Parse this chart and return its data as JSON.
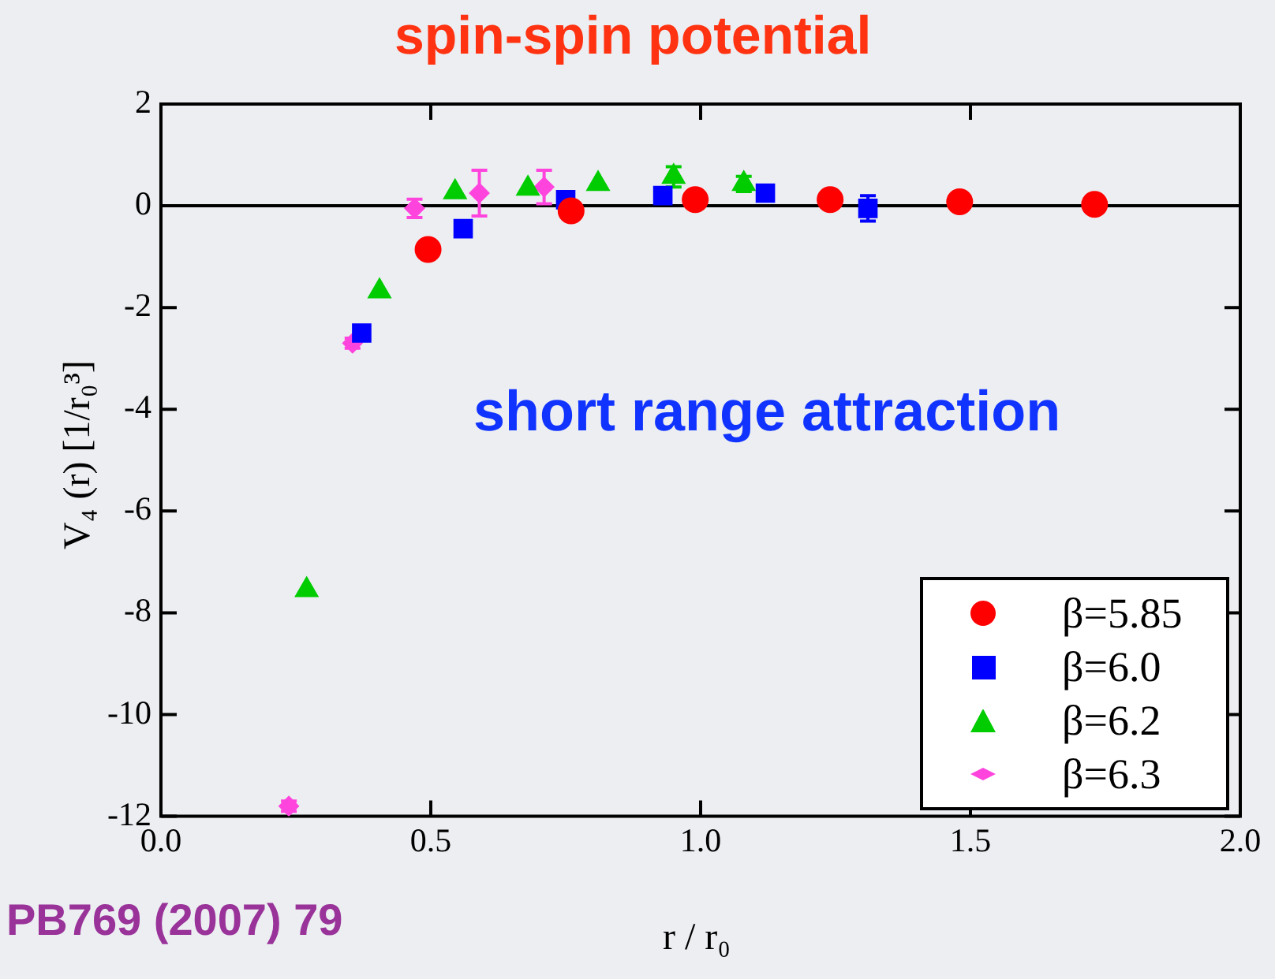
{
  "chart_data": {
    "type": "scatter",
    "title": "spin-spin potential",
    "xlabel": "r / r₀",
    "ylabel": "V₄ (r) [1/r₀³]",
    "annotations": [
      "short range attraction",
      "PB769 (2007) 79"
    ],
    "xlim": [
      0,
      2
    ],
    "xticks": [
      {
        "value": 0,
        "label": "0.0"
      },
      {
        "value": 0.5,
        "label": "0.5"
      },
      {
        "value": 1,
        "label": "1.0"
      },
      {
        "value": 1.5,
        "label": "1.5"
      },
      {
        "value": 2,
        "label": "2.0"
      }
    ],
    "ylim": [
      -12,
      2
    ],
    "yticks": [
      -12,
      -10,
      -8,
      -6,
      -4,
      -2,
      0,
      2
    ],
    "grid": false,
    "legend": "bottom right",
    "ref_lines": [
      {
        "axis": "y",
        "value": 0,
        "color": "#000000"
      }
    ],
    "series": [
      {
        "name": "β=5.85",
        "color": "#ff0000",
        "marker": "circle",
        "x": [
          0.495,
          0.76,
          0.99,
          1.24,
          1.48,
          1.73
        ],
        "values": [
          -0.86,
          -0.1,
          0.12,
          0.12,
          0.08,
          0.03
        ]
      },
      {
        "name": "β=6.0",
        "color": "#0000ff",
        "marker": "square",
        "x": [
          0.372,
          0.56,
          0.75,
          0.93,
          1.12,
          1.31
        ],
        "values": [
          -2.5,
          -0.45,
          0.12,
          0.2,
          0.25,
          -0.05
        ],
        "errors": [
          null,
          null,
          null,
          null,
          null,
          0.25
        ]
      },
      {
        "name": "β=6.2",
        "color": "#00cc00",
        "marker": "triangle",
        "x": [
          0.27,
          0.405,
          0.545,
          0.68,
          0.81,
          0.95,
          1.08
        ],
        "values": [
          -7.55,
          -1.68,
          0.27,
          0.34,
          0.43,
          0.57,
          0.43
        ],
        "errors": [
          null,
          null,
          null,
          null,
          null,
          0.2,
          0.15
        ]
      },
      {
        "name": "β=6.3",
        "color": "#ff44dd",
        "marker": "diamond",
        "x": [
          0.237,
          0.355,
          0.47,
          0.59,
          0.71
        ],
        "values": [
          -11.8,
          -2.7,
          -0.05,
          0.25,
          0.37
        ],
        "errors": [
          0.1,
          0.1,
          0.18,
          0.45,
          0.33
        ]
      }
    ]
  }
}
